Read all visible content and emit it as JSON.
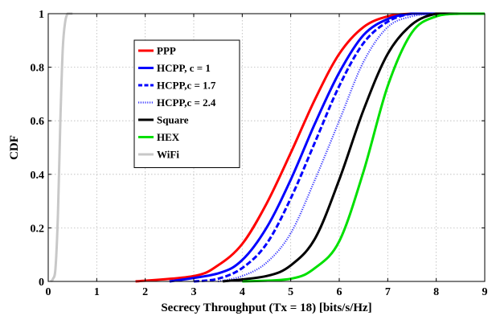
{
  "chart_data": {
    "type": "line",
    "xlabel": "Secrecy Throughput (Tx = 18) [bits/s/Hz]",
    "ylabel": "CDF",
    "xlim": [
      0,
      9
    ],
    "ylim": [
      0,
      1
    ],
    "xticks": [
      "0",
      "1",
      "2",
      "3",
      "4",
      "5",
      "6",
      "7",
      "8",
      "9"
    ],
    "yticks": [
      "0",
      "0.2",
      "0.4",
      "0.6",
      "0.8",
      "1"
    ],
    "grid": true,
    "legend_position": "center-left",
    "series": [
      {
        "name": "PPP",
        "color": "#ff0000",
        "style": "solid",
        "x": [
          1.8,
          3.0,
          3.5,
          4.0,
          4.5,
          5.0,
          5.5,
          6.0,
          6.5,
          7.0,
          7.5,
          8.0,
          8.5
        ],
        "y": [
          0.0,
          0.02,
          0.06,
          0.14,
          0.29,
          0.48,
          0.68,
          0.85,
          0.95,
          0.99,
          1.0,
          1.0,
          1.0
        ]
      },
      {
        "name": "HCPP, c = 1",
        "color": "#0000ff",
        "style": "solid",
        "x": [
          2.5,
          3.5,
          4.0,
          4.5,
          5.0,
          5.5,
          6.0,
          6.5,
          7.0,
          7.5,
          8.0,
          8.5
        ],
        "y": [
          0.0,
          0.03,
          0.08,
          0.2,
          0.38,
          0.59,
          0.78,
          0.92,
          0.98,
          1.0,
          1.0,
          1.0
        ]
      },
      {
        "name": "HCPP,c = 1.7",
        "color": "#0000ff",
        "style": "dashed",
        "x": [
          3.0,
          3.5,
          4.0,
          4.5,
          5.0,
          5.5,
          6.0,
          6.5,
          7.0,
          7.5,
          8.0,
          8.5
        ],
        "y": [
          0.0,
          0.01,
          0.05,
          0.14,
          0.31,
          0.52,
          0.73,
          0.89,
          0.97,
          1.0,
          1.0,
          1.0
        ]
      },
      {
        "name": "HCPP,c = 2.4",
        "color": "#3a3aff",
        "style": "dotted",
        "x": [
          3.5,
          4.0,
          4.5,
          5.0,
          5.5,
          6.0,
          6.5,
          7.0,
          7.5,
          8.0,
          8.5
        ],
        "y": [
          0.0,
          0.02,
          0.07,
          0.18,
          0.38,
          0.6,
          0.82,
          0.95,
          0.99,
          1.0,
          1.0
        ]
      },
      {
        "name": "Square",
        "color": "#000000",
        "style": "solid",
        "x": [
          3.6,
          4.5,
          5.0,
          5.5,
          6.0,
          6.5,
          7.0,
          7.5,
          8.0,
          8.5
        ],
        "y": [
          0.0,
          0.02,
          0.06,
          0.16,
          0.38,
          0.64,
          0.85,
          0.96,
          1.0,
          1.0
        ]
      },
      {
        "name": "HEX",
        "color": "#00e000",
        "style": "solid",
        "x": [
          4.0,
          5.0,
          5.5,
          6.0,
          6.5,
          7.0,
          7.5,
          8.0,
          8.5,
          9.0
        ],
        "y": [
          0.0,
          0.01,
          0.05,
          0.15,
          0.41,
          0.73,
          0.93,
          0.99,
          1.0,
          1.0
        ]
      },
      {
        "name": "WiFi",
        "color": "#c8c8c8",
        "style": "solid",
        "x": [
          0.05,
          0.1,
          0.15,
          0.2,
          0.25,
          0.3,
          0.35,
          0.4,
          0.45,
          0.5
        ],
        "y": [
          0.0,
          0.01,
          0.05,
          0.25,
          0.6,
          0.87,
          0.97,
          1.0,
          1.0,
          1.0
        ]
      }
    ]
  }
}
